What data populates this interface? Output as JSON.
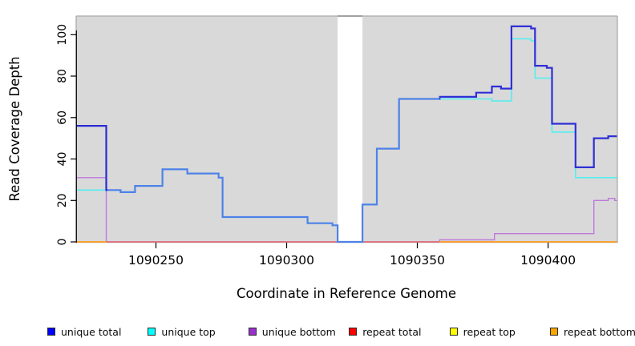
{
  "chart_data": {
    "type": "line",
    "step": true,
    "title": "",
    "xlabel": "Coordinate in Reference Genome",
    "ylabel": "Read Coverage Depth",
    "xlim": [
      1090219.5,
      1090426.5
    ],
    "ylim": [
      0,
      109
    ],
    "x_ticks": [
      1090250,
      1090300,
      1090350,
      1090400
    ],
    "y_ticks": [
      0,
      20,
      40,
      60,
      80,
      100
    ],
    "grid": false,
    "plot_background": "#d9d9d9",
    "box_color": "#ababab",
    "masked_region": {
      "from": 1090319.5,
      "to": 1090329,
      "color": "#ffffff",
      "top_border_color": "#8c8c8c"
    },
    "legend_position": "bottom",
    "legend": [
      {
        "label": "unique total",
        "color": "#0000ff"
      },
      {
        "label": "unique top",
        "color": "#00ffff"
      },
      {
        "label": "unique bottom",
        "color": "#9932cc"
      },
      {
        "label": "repeat total",
        "color": "#ff0000"
      },
      {
        "label": "repeat top",
        "color": "#ffff00"
      },
      {
        "label": "repeat bottom",
        "color": "#ffa500"
      }
    ],
    "series": [
      {
        "name": "unique bottom",
        "line_color": "#bf78dc",
        "line_width": 1.4,
        "points": [
          [
            1090219.5,
            31
          ],
          [
            1090231,
            0
          ],
          [
            1090358.5,
            1
          ],
          [
            1090379.5,
            4
          ],
          [
            1090417.5,
            20
          ],
          [
            1090423,
            21
          ],
          [
            1090425.5,
            20
          ]
        ]
      },
      {
        "name": "repeat top",
        "line_color": "#ffd400",
        "line_width": 1.5,
        "points": [
          [
            1090219.5,
            0
          ]
        ]
      },
      {
        "name": "repeat total",
        "line_color": "#d85f87",
        "line_width": 1.5,
        "points": [
          [
            1090219.5,
            0
          ]
        ]
      },
      {
        "name": "repeat bottom",
        "line_color": "#ffa41e",
        "line_width": 1.6,
        "points": [
          [
            1090219.5,
            0
          ]
        ],
        "visible_ranges": [
          [
            1090219.5,
            1090231
          ],
          [
            1090358.5,
            1090426.5
          ]
        ]
      },
      {
        "name": "unique top",
        "line_color": "#55eef0",
        "line_width": 1.6,
        "points": [
          [
            1090219.5,
            25
          ],
          [
            1090236.5,
            24
          ],
          [
            1090242,
            27
          ],
          [
            1090252.5,
            35
          ],
          [
            1090262,
            33
          ],
          [
            1090274,
            31
          ],
          [
            1090275.5,
            12
          ],
          [
            1090308,
            9
          ],
          [
            1090317.5,
            8
          ],
          [
            1090319.5,
            0
          ],
          [
            1090329,
            18
          ],
          [
            1090334.5,
            45
          ],
          [
            1090343,
            69
          ],
          [
            1090378.5,
            68
          ],
          [
            1090386,
            98
          ],
          [
            1090393.5,
            97
          ],
          [
            1090395,
            79
          ],
          [
            1090401.5,
            53
          ],
          [
            1090410.5,
            31
          ]
        ]
      },
      {
        "name": "unique total",
        "line_width": 2.2,
        "color_segments": [
          {
            "from": 1090219.5,
            "to": 1090231.5,
            "color": "#2a2ad2"
          },
          {
            "from": 1090231.5,
            "to": 1090358.5,
            "color": "#4d82e8"
          },
          {
            "from": 1090358.5,
            "to": 1090426.5,
            "color": "#2f2fd6"
          }
        ],
        "points": [
          [
            1090219.5,
            56
          ],
          [
            1090231,
            25
          ],
          [
            1090236.5,
            24
          ],
          [
            1090242,
            27
          ],
          [
            1090252.5,
            35
          ],
          [
            1090262,
            33
          ],
          [
            1090274,
            31
          ],
          [
            1090275.5,
            12
          ],
          [
            1090308,
            9
          ],
          [
            1090317.5,
            8
          ],
          [
            1090319.5,
            0
          ],
          [
            1090329,
            18
          ],
          [
            1090334.5,
            45
          ],
          [
            1090343,
            69
          ],
          [
            1090358.5,
            70
          ],
          [
            1090372.5,
            72
          ],
          [
            1090378.5,
            75
          ],
          [
            1090382,
            74
          ],
          [
            1090386,
            104
          ],
          [
            1090393.5,
            103
          ],
          [
            1090395,
            85
          ],
          [
            1090399.5,
            84
          ],
          [
            1090401.5,
            57
          ],
          [
            1090410.5,
            36
          ],
          [
            1090417.5,
            50
          ],
          [
            1090423,
            51
          ]
        ]
      }
    ]
  }
}
